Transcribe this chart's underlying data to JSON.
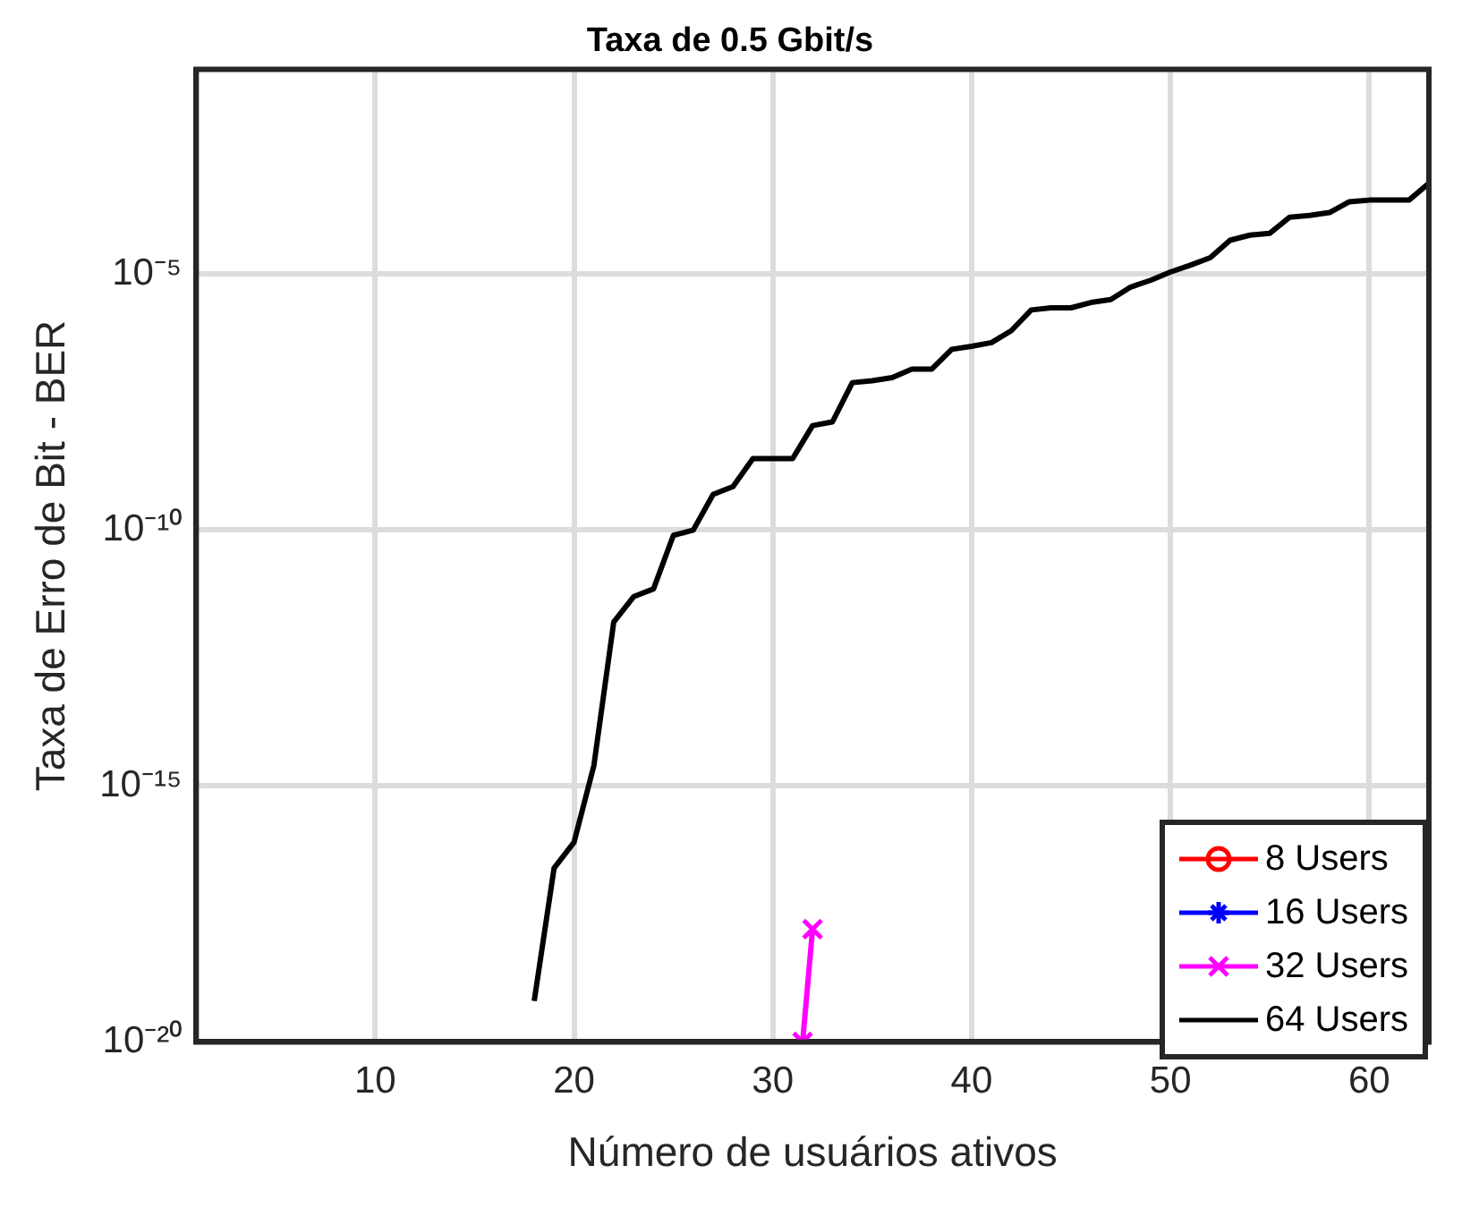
{
  "chart_data": {
    "type": "line",
    "title": "Taxa de 0.5 Gbit/s",
    "xlabel": "Número de usuários ativos",
    "ylabel": "Taxa de Erro de Bit - BER",
    "log": "y",
    "grid": true,
    "legend": "bottom right",
    "xlim": [
      1,
      63
    ],
    "xticks": [
      10,
      20,
      30,
      40,
      50,
      60
    ],
    "ylim": [
      1e-20,
      0.1
    ],
    "yticks": [
      {
        "value": 1e-20,
        "label": "10⁻²⁰"
      },
      {
        "value": 1e-15,
        "label": "10⁻¹⁵"
      },
      {
        "value": 1e-10,
        "label": "10⁻¹⁰"
      },
      {
        "value": 1e-05,
        "label": "10⁻⁵"
      }
    ],
    "series": [
      {
        "name": "8 Users",
        "color": "#ff0000",
        "marker": "circle"
      },
      {
        "name": "16 Users",
        "color": "#0000ff",
        "marker": "star"
      },
      {
        "name": "32 Users",
        "color": "#ff00ff",
        "marker": "cross",
        "x": [
          31.5,
          32
        ],
        "values": [
          1e-20,
          1.6e-18
        ]
      },
      {
        "name": "64 Users",
        "color": "#000000",
        "marker": "none",
        "x": [
          18,
          19,
          20,
          21,
          22,
          23,
          24,
          25,
          26,
          27,
          28,
          29,
          30,
          31,
          32,
          33,
          34,
          35,
          36,
          37,
          38,
          39,
          40,
          41,
          42,
          43,
          44,
          45,
          46,
          47,
          48,
          49,
          50,
          51,
          52,
          53,
          54,
          55,
          56,
          57,
          58,
          59,
          60,
          61,
          62,
          63
        ],
        "values": [
          6.3e-20,
          2.5e-17,
          7.9e-17,
          2.5e-15,
          1.6e-12,
          5e-12,
          7.1e-12,
          7.9e-11,
          1e-10,
          5e-10,
          7.1e-10,
          2.5e-09,
          2.5e-09,
          2.5e-09,
          1.1e-08,
          1.3e-08,
          7.6e-08,
          8.3e-08,
          9.5e-08,
          1.4e-07,
          1.4e-07,
          3.4e-07,
          3.9e-07,
          4.6e-07,
          7.9e-07,
          2e-06,
          2.2e-06,
          2.2e-06,
          2.8e-06,
          3.2e-06,
          5.6e-06,
          7.6e-06,
          1.1e-05,
          1.5e-05,
          2.1e-05,
          4.6e-05,
          5.8e-05,
          6.3e-05,
          0.00013,
          0.00014,
          0.00016,
          0.00026,
          0.00028,
          0.00028,
          0.00028,
          0.0006
        ]
      }
    ]
  }
}
